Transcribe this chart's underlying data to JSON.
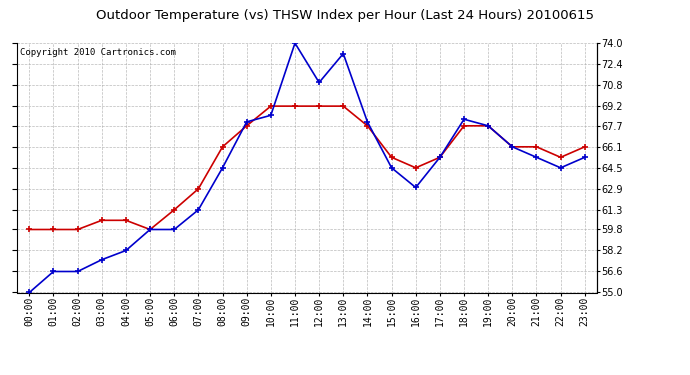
{
  "title": "Outdoor Temperature (vs) THSW Index per Hour (Last 24 Hours) 20100615",
  "copyright": "Copyright 2010 Cartronics.com",
  "hours": [
    0,
    1,
    2,
    3,
    4,
    5,
    6,
    7,
    8,
    9,
    10,
    11,
    12,
    13,
    14,
    15,
    16,
    17,
    18,
    19,
    20,
    21,
    22,
    23
  ],
  "temp_red": [
    59.8,
    59.8,
    59.8,
    60.5,
    60.5,
    59.8,
    61.3,
    62.9,
    66.1,
    67.7,
    69.2,
    69.2,
    69.2,
    69.2,
    67.7,
    65.3,
    64.5,
    65.3,
    67.7,
    67.7,
    66.1,
    66.1,
    65.3,
    66.1
  ],
  "thsw_blue": [
    55.0,
    56.6,
    56.6,
    57.5,
    58.2,
    59.8,
    59.8,
    61.3,
    64.5,
    68.0,
    68.5,
    74.0,
    71.0,
    73.2,
    68.0,
    64.5,
    63.0,
    65.3,
    68.2,
    67.7,
    66.1,
    65.3,
    64.5,
    65.3
  ],
  "ylim": [
    55.0,
    74.0
  ],
  "yticks": [
    55.0,
    56.6,
    58.2,
    59.8,
    61.3,
    62.9,
    64.5,
    66.1,
    67.7,
    69.2,
    70.8,
    72.4,
    74.0
  ],
  "bg_color": "#ffffff",
  "grid_color": "#aaaaaa",
  "red_color": "#cc0000",
  "blue_color": "#0000cc",
  "title_fontsize": 9.5,
  "copyright_fontsize": 6.5,
  "tick_fontsize": 7,
  "ytick_fontsize": 7
}
